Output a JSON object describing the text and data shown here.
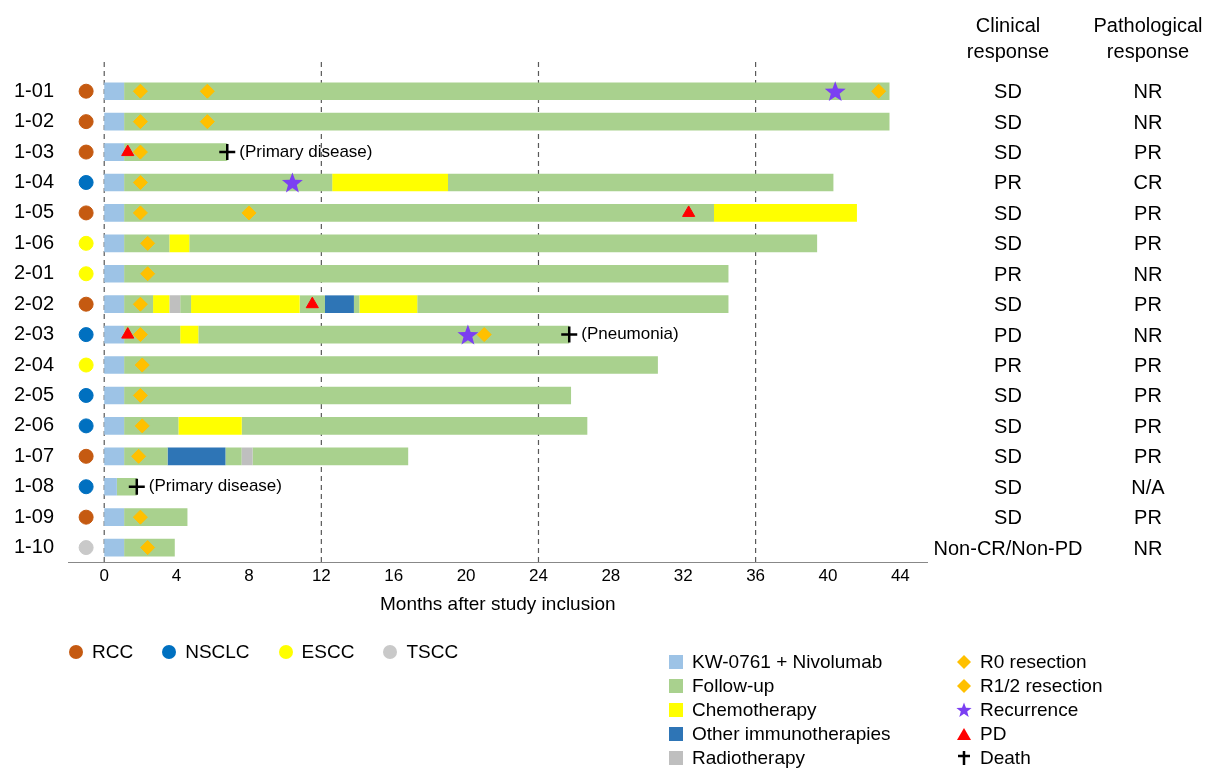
{
  "chart_data": [
    {
      "type": "bar",
      "orientation": "horizontal",
      "xlabel": "Months after study inclusion",
      "xlim": [
        -2,
        45.5
      ],
      "xticks": [
        0,
        4,
        8,
        12,
        16,
        20,
        24,
        28,
        32,
        36,
        40,
        44
      ],
      "legend": "bottom",
      "categories": [
        "1-01",
        "1-02",
        "1-03",
        "1-04",
        "1-05",
        "1-06",
        "2-01",
        "2-02",
        "2-03",
        "2-04",
        "2-05",
        "2-06",
        "1-07",
        "1-08",
        "1-09",
        "1-10"
      ],
      "series": [
        {
          "type": "bar",
          "name": "KW-0761 + Nivolumab",
          "color": "#9dc3e6",
          "base": [
            0,
            0,
            0,
            0,
            0,
            0,
            0,
            0,
            0,
            0,
            0,
            0,
            0,
            0,
            0,
            0
          ],
          "values": [
            1.1,
            1.1,
            1.1,
            1.1,
            1.1,
            1.1,
            1.1,
            1.1,
            1.1,
            1.1,
            1.1,
            1.1,
            1.1,
            0.7,
            1.1,
            1.1
          ]
        },
        {
          "type": "bar",
          "name": "Follow-up",
          "color": "#a9d18e",
          "base": [
            1.1,
            1.1,
            1.1,
            1.1,
            1.1,
            1.1,
            1.1,
            1.1,
            1.1,
            1.1,
            1.1,
            1.1,
            1.1,
            0.7,
            1.1,
            1.1
          ],
          "values": [
            42.3,
            42.3,
            5.7,
            11.5,
            32.6,
            2.5,
            33.4,
            1.6,
            3.1,
            29.5,
            24.7,
            3.0,
            2.4,
            1.1,
            3.5,
            2.8
          ]
        },
        {
          "type": "bar",
          "name": "Chemotherapy",
          "color": "#ffff00",
          "base": [
            null,
            null,
            null,
            12.6,
            33.7,
            3.6,
            null,
            2.7,
            4.2,
            null,
            null,
            4.1,
            null,
            null,
            null,
            null
          ],
          "values": [
            null,
            null,
            null,
            6.4,
            7.9,
            1.1,
            null,
            0.9,
            1.0,
            null,
            null,
            3.5,
            null,
            null,
            null,
            null
          ]
        },
        {
          "type": "bar",
          "name": "Other immunotherapies",
          "color": "#2e75b6",
          "base": [
            null,
            null,
            null,
            null,
            null,
            null,
            null,
            12.2,
            null,
            null,
            null,
            null,
            3.5,
            null,
            null,
            null
          ],
          "values": [
            null,
            null,
            null,
            null,
            null,
            null,
            null,
            1.6,
            null,
            null,
            null,
            null,
            3.2,
            null,
            null,
            null
          ]
        },
        {
          "type": "bar",
          "name": "Radiotherapy",
          "color": "#bfbfbf",
          "base": [
            null,
            null,
            null,
            null,
            null,
            null,
            null,
            3.6,
            null,
            null,
            null,
            null,
            7.6,
            null,
            null,
            null
          ],
          "values": [
            null,
            null,
            null,
            null,
            null,
            null,
            null,
            0.6,
            null,
            null,
            null,
            null,
            0.6,
            null,
            null,
            null
          ]
        },
        {
          "type": "bar",
          "color": "#a9d18e",
          "base": [
            null,
            null,
            null,
            19.0,
            null,
            4.7,
            null,
            4.2,
            5.2,
            null,
            null,
            7.6,
            6.7,
            null,
            null,
            null
          ],
          "values": [
            null,
            null,
            null,
            21.3,
            null,
            34.7,
            null,
            0.6,
            20.5,
            null,
            null,
            19.1,
            0.9,
            null,
            null,
            null
          ]
        },
        {
          "type": "bar",
          "color": "#ffff00",
          "base": [
            null,
            null,
            null,
            null,
            null,
            null,
            null,
            4.8,
            null,
            null,
            null,
            null,
            null,
            null,
            null,
            null
          ],
          "values": [
            null,
            null,
            null,
            null,
            null,
            null,
            null,
            6.0,
            null,
            null,
            null,
            null,
            null,
            null,
            null,
            null
          ]
        },
        {
          "type": "bar",
          "color": "#a9d18e",
          "base": [
            null,
            null,
            null,
            null,
            null,
            null,
            null,
            10.8,
            null,
            null,
            null,
            null,
            8.2,
            null,
            null,
            null
          ],
          "values": [
            null,
            null,
            null,
            null,
            null,
            null,
            null,
            1.4,
            null,
            null,
            null,
            null,
            8.6,
            null,
            null,
            null
          ]
        },
        {
          "type": "bar",
          "color": "#a9d18e",
          "base": [
            null,
            null,
            null,
            null,
            null,
            null,
            null,
            13.8,
            null,
            null,
            null,
            null,
            null,
            null,
            null,
            null
          ],
          "values": [
            null,
            null,
            null,
            null,
            null,
            null,
            null,
            0.3,
            null,
            null,
            null,
            null,
            null,
            null,
            null,
            null
          ]
        },
        {
          "type": "bar",
          "color": "#ffff00",
          "base": [
            null,
            null,
            null,
            null,
            null,
            null,
            null,
            14.1,
            null,
            null,
            null,
            null,
            null,
            null,
            null,
            null
          ],
          "values": [
            null,
            null,
            null,
            null,
            null,
            null,
            null,
            3.2,
            null,
            null,
            null,
            null,
            null,
            null,
            null,
            null
          ]
        },
        {
          "type": "bar",
          "color": "#a9d18e",
          "base": [
            null,
            null,
            null,
            null,
            null,
            null,
            null,
            17.3,
            null,
            null,
            null,
            null,
            null,
            null,
            null,
            null
          ],
          "values": [
            null,
            null,
            null,
            null,
            null,
            null,
            null,
            17.2,
            null,
            null,
            null,
            null,
            null,
            null,
            null,
            null
          ]
        },
        {
          "type": "scatter",
          "name": "RCC",
          "color": "#c55a11",
          "marker": "circle",
          "x": [
            "1-01",
            "1-02",
            "1-03",
            "1-05",
            "2-02",
            "1-07",
            "1-09"
          ],
          "values": [
            -1,
            -1,
            -1,
            -1,
            -1,
            -1,
            -1
          ]
        },
        {
          "type": "scatter",
          "name": "NSCLC",
          "color": "#0070c0",
          "marker": "circle",
          "x": [
            "1-04",
            "2-03",
            "2-05",
            "2-06",
            "1-08"
          ],
          "values": [
            -1,
            -1,
            -1,
            -1,
            -1
          ]
        },
        {
          "type": "scatter",
          "name": "ESCC",
          "color": "#ffff00",
          "marker": "circle",
          "x": [
            "1-06",
            "2-01",
            "2-04"
          ],
          "values": [
            -1,
            -1,
            -1
          ]
        },
        {
          "type": "scatter",
          "name": "TSCC",
          "color": "#c9c9c9",
          "marker": "circle",
          "x": [
            "1-10"
          ],
          "values": [
            -1
          ]
        },
        {
          "type": "scatter",
          "name": "R0 resection",
          "color": "#ffc000",
          "marker": "diamond",
          "x": [
            "1-01",
            "1-01",
            "1-02",
            "1-04",
            "1-05",
            "1-06",
            "2-01",
            "2-03",
            "2-03",
            "2-04",
            "2-05",
            "2-06",
            "1-10"
          ],
          "values": [
            5.7,
            42.8,
            5.7,
            2.0,
            8.0,
            2.4,
            2.4,
            2.0,
            21.0,
            2.1,
            2.0,
            2.1,
            2.4
          ]
        },
        {
          "type": "scatter",
          "name": "R1/2 resection",
          "color": "#ffc000",
          "marker": "diamond",
          "x": [
            "1-01",
            "1-02",
            "1-03",
            "1-05",
            "2-02",
            "1-07",
            "1-09"
          ],
          "values": [
            2.0,
            2.0,
            2.0,
            2.0,
            2.0,
            1.9,
            2.0
          ]
        },
        {
          "type": "scatter",
          "name": "Recurrence",
          "color": "#7b3ff2",
          "marker": "star",
          "x": [
            "1-01",
            "1-04",
            "2-03"
          ],
          "values": [
            40.4,
            10.4,
            20.1
          ]
        },
        {
          "type": "scatter",
          "name": "PD",
          "color": "#ff0000",
          "marker": "triangle",
          "x": [
            "1-03",
            "1-05",
            "2-02",
            "2-03"
          ],
          "values": [
            1.3,
            32.3,
            11.5,
            1.3
          ]
        },
        {
          "type": "scatter",
          "name": "Death",
          "color": "#000000",
          "marker": "cross",
          "x": [
            "1-03",
            "2-03",
            "1-08"
          ],
          "values": [
            6.8,
            25.7,
            1.8
          ]
        }
      ],
      "ref_lines": [
        {
          "axis": "x",
          "value": 0,
          "line_style": "dashed",
          "color": "#595959"
        },
        {
          "axis": "x",
          "value": 12,
          "line_style": "dashed",
          "color": "#595959"
        },
        {
          "axis": "x",
          "value": 24,
          "line_style": "dashed",
          "color": "#595959"
        },
        {
          "axis": "x",
          "value": 36,
          "line_style": "dashed",
          "color": "#595959"
        }
      ],
      "annotations": [
        {
          "text": "(Primary disease)",
          "x": 6.8,
          "y": "1-03"
        },
        {
          "text": "(Pneumonia)",
          "x": 25.7,
          "y": "2-03"
        },
        {
          "text": "(Primary disease)",
          "x": 1.8,
          "y": "1-08"
        }
      ]
    },
    {
      "type": "other",
      "categories": [
        "Clinical response",
        "Pathological response"
      ],
      "annotations": [
        "SD",
        "NR",
        "SD",
        "NR",
        "SD",
        "PR",
        "PR",
        "CR",
        "SD",
        "PR",
        "SD",
        "PR",
        "PR",
        "NR",
        "SD",
        "PR",
        "PD",
        "NR",
        "PR",
        "PR",
        "SD",
        "PR",
        "SD",
        "PR",
        "SD",
        "PR",
        "SD",
        "N/A",
        "SD",
        "PR",
        "Non-CR/Non-PD",
        "NR"
      ]
    }
  ]
}
